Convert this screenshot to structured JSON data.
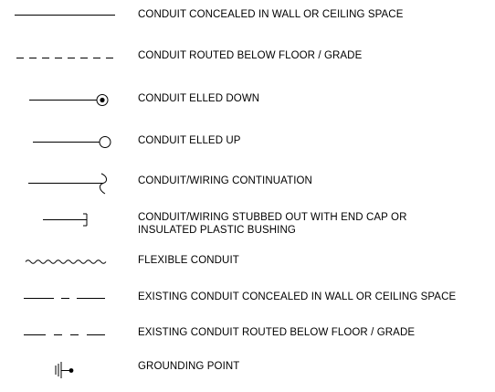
{
  "legend": {
    "items": [
      {
        "symbol": "solid-line",
        "lines": [
          "CONDUIT CONCEALED IN WALL OR CEILING SPACE"
        ]
      },
      {
        "symbol": "dashed-line",
        "lines": [
          "CONDUIT ROUTED BELOW FLOOR / GRADE"
        ]
      },
      {
        "symbol": "elled-down",
        "lines": [
          "CONDUIT ELLED DOWN"
        ]
      },
      {
        "symbol": "elled-up",
        "lines": [
          "CONDUIT ELLED UP"
        ]
      },
      {
        "symbol": "continuation",
        "lines": [
          "CONDUIT/WIRING CONTINUATION"
        ]
      },
      {
        "symbol": "stubbed-out",
        "lines": [
          "CONDUIT/WIRING STUBBED OUT WITH END CAP OR",
          "INSULATED PLASTIC BUSHING"
        ]
      },
      {
        "symbol": "flexible",
        "lines": [
          "FLEXIBLE CONDUIT"
        ]
      },
      {
        "symbol": "existing-concealed",
        "lines": [
          "EXISTING CONDUIT CONCEALED IN WALL OR CEILING SPACE"
        ]
      },
      {
        "symbol": "existing-below-floor",
        "lines": [
          "EXISTING CONDUIT ROUTED BELOW FLOOR / GRADE"
        ]
      },
      {
        "symbol": "grounding",
        "lines": [
          "GROUNDING POINT"
        ]
      }
    ]
  }
}
